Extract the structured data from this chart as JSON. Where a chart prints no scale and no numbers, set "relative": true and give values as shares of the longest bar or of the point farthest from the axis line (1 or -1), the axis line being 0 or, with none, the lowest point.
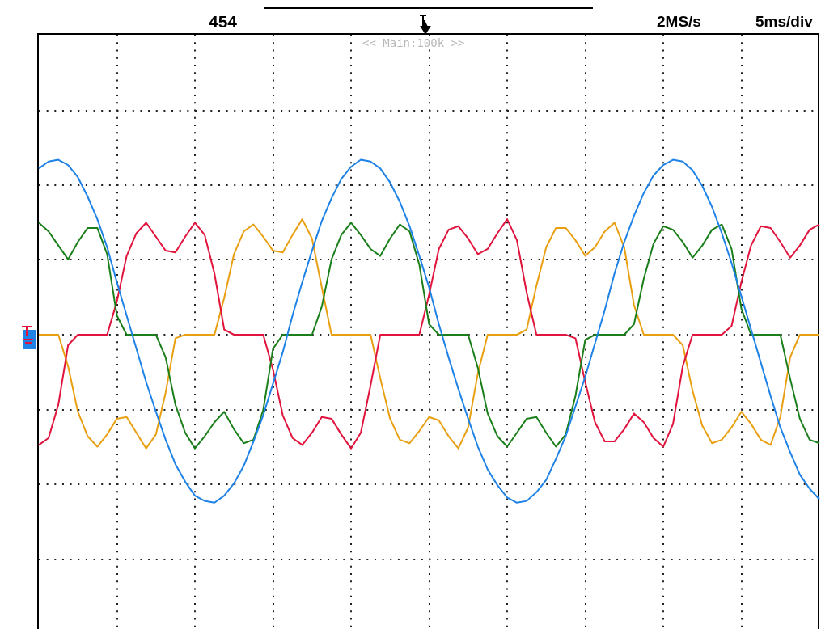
{
  "chart_data": {
    "type": "line",
    "relative": true,
    "grid": true,
    "marker": "none",
    "annotations": [
      "454",
      "<< Main:100k >>",
      "2MS/s",
      "5ms/div"
    ],
    "categories": [
      null,
      null,
      null,
      null,
      null,
      null,
      null,
      null,
      null,
      null,
      null,
      null,
      null,
      null,
      null,
      null,
      null,
      null,
      null,
      null,
      null,
      null,
      null,
      null,
      null,
      null,
      null,
      null,
      null,
      null,
      null,
      null,
      null,
      null,
      null,
      null,
      null,
      null,
      null,
      null,
      null,
      null,
      null,
      null,
      null,
      null,
      null,
      null,
      null,
      null,
      null,
      null,
      null,
      null,
      null,
      null,
      null,
      null,
      null,
      null,
      null,
      null,
      null,
      null,
      null,
      null,
      null,
      null,
      null,
      null,
      null,
      null,
      null,
      null,
      null,
      null,
      null,
      null,
      null,
      null,
      null
    ],
    "series": [
      {
        "color": "#1e82e6",
        "values": [
          0.95,
          0.99,
          1.0,
          0.97,
          0.9,
          0.79,
          0.66,
          0.5,
          0.3,
          0.11,
          -0.08,
          -0.27,
          -0.44,
          -0.6,
          -0.74,
          -0.84,
          -0.92,
          -0.95,
          -0.96,
          -0.92,
          -0.85,
          -0.75,
          -0.61,
          -0.46,
          -0.28,
          -0.1,
          0.11,
          0.3,
          0.48,
          0.65,
          0.78,
          0.89,
          0.96,
          1.0,
          0.99,
          0.95,
          0.87,
          0.76,
          0.62,
          0.45,
          0.27,
          0.06,
          -0.13,
          -0.31,
          -0.48,
          -0.64,
          -0.77,
          -0.86,
          -0.93,
          -0.96,
          -0.95,
          -0.9,
          -0.83,
          -0.71,
          -0.58,
          -0.41,
          -0.24,
          -0.05,
          0.14,
          0.35,
          0.53,
          0.68,
          0.81,
          0.91,
          0.97,
          1.0,
          0.99,
          0.94,
          0.85,
          0.73,
          0.58,
          0.41,
          0.22,
          0.03,
          -0.16,
          -0.35,
          -0.53,
          -0.67,
          -0.8,
          -0.88,
          -0.94
        ]
      },
      {
        "color": "#1a7f1a",
        "values": [
          0.64,
          0.59,
          0.51,
          0.43,
          0.53,
          0.61,
          0.61,
          0.46,
          0.11,
          0,
          0,
          0,
          0,
          -0.13,
          -0.4,
          -0.56,
          -0.65,
          -0.58,
          -0.5,
          -0.44,
          -0.54,
          -0.62,
          -0.6,
          -0.43,
          -0.08,
          0,
          0,
          0,
          0,
          0.16,
          0.43,
          0.57,
          0.64,
          0.57,
          0.49,
          0.45,
          0.55,
          0.63,
          0.59,
          0.4,
          0.06,
          0,
          0,
          0,
          0,
          -0.19,
          -0.45,
          -0.58,
          -0.64,
          -0.56,
          -0.48,
          -0.47,
          -0.56,
          -0.64,
          -0.57,
          -0.35,
          -0.03,
          0,
          0,
          0,
          0,
          0.06,
          0.32,
          0.52,
          0.62,
          0.6,
          0.53,
          0.44,
          0.51,
          0.6,
          0.63,
          0.49,
          0.15,
          0,
          0,
          0,
          0,
          -0.25,
          -0.48,
          -0.6,
          -0.62
        ]
      },
      {
        "color": "#e0143c",
        "values": [
          -0.63,
          -0.59,
          -0.4,
          -0.06,
          0,
          0,
          0,
          0,
          0.19,
          0.45,
          0.58,
          0.64,
          0.56,
          0.48,
          0.47,
          0.56,
          0.64,
          0.57,
          0.35,
          0.03,
          0,
          0,
          0,
          0,
          -0.2,
          -0.46,
          -0.59,
          -0.63,
          -0.56,
          -0.47,
          -0.48,
          -0.57,
          -0.65,
          -0.56,
          -0.29,
          0,
          0,
          0,
          0,
          0,
          0.23,
          0.49,
          0.6,
          0.62,
          0.55,
          0.46,
          0.49,
          0.58,
          0.66,
          0.54,
          0.24,
          0,
          0,
          0,
          0,
          -0.02,
          -0.27,
          -0.5,
          -0.61,
          -0.61,
          -0.54,
          -0.45,
          -0.5,
          -0.59,
          -0.64,
          -0.51,
          -0.18,
          0,
          0,
          0,
          0,
          0.05,
          0.3,
          0.51,
          0.62,
          0.61,
          0.53,
          0.44,
          0.51,
          0.6,
          0.63
        ]
      },
      {
        "color": "#e8a012",
        "values": [
          0,
          0,
          0,
          -0.18,
          -0.44,
          -0.58,
          -0.64,
          -0.57,
          -0.48,
          -0.47,
          -0.56,
          -0.65,
          -0.57,
          -0.33,
          -0.02,
          0,
          0,
          0,
          0,
          0.21,
          0.46,
          0.59,
          0.63,
          0.56,
          0.48,
          0.47,
          0.57,
          0.66,
          0.55,
          0.27,
          0,
          0,
          0,
          0,
          0,
          -0.25,
          -0.48,
          -0.6,
          -0.62,
          -0.55,
          -0.47,
          -0.49,
          -0.58,
          -0.65,
          -0.53,
          -0.22,
          0,
          0,
          0,
          0,
          0.03,
          0.28,
          0.5,
          0.61,
          0.61,
          0.54,
          0.45,
          0.5,
          0.59,
          0.64,
          0.5,
          0.17,
          0,
          0,
          0,
          0,
          -0.06,
          -0.32,
          -0.52,
          -0.62,
          -0.6,
          -0.53,
          -0.44,
          -0.51,
          -0.6,
          -0.63,
          -0.47,
          -0.13,
          0,
          0,
          0
        ]
      }
    ]
  }
}
